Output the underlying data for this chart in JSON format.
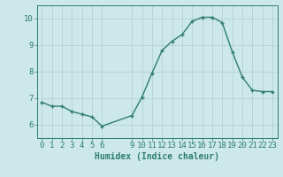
{
  "x": [
    0,
    1,
    2,
    3,
    4,
    5,
    6,
    9,
    10,
    11,
    12,
    13,
    14,
    15,
    16,
    17,
    18,
    19,
    20,
    21,
    22,
    23
  ],
  "y": [
    6.85,
    6.7,
    6.7,
    6.5,
    6.4,
    6.3,
    5.95,
    6.35,
    7.05,
    7.95,
    8.8,
    9.15,
    9.4,
    9.9,
    10.05,
    10.05,
    9.85,
    8.75,
    7.8,
    7.3,
    7.25,
    7.25
  ],
  "line_color": "#2e7d6e",
  "bg_color": "#cce8e8",
  "grid_color": "#b8d4d4",
  "xlabel": "Humidex (Indice chaleur)",
  "xlim": [
    -0.5,
    23.5
  ],
  "ylim": [
    5.5,
    10.5
  ],
  "xticks": [
    0,
    1,
    2,
    3,
    4,
    5,
    6,
    9,
    10,
    11,
    12,
    13,
    14,
    15,
    16,
    17,
    18,
    19,
    20,
    21,
    22,
    23
  ],
  "yticks": [
    6,
    7,
    8,
    9,
    10
  ],
  "marker": "+",
  "marker_size": 3.5,
  "line_width": 1.0,
  "xlabel_fontsize": 7,
  "tick_fontsize": 6.5,
  "tick_color": "#2e7d6e",
  "label_color": "#2e7d6e"
}
